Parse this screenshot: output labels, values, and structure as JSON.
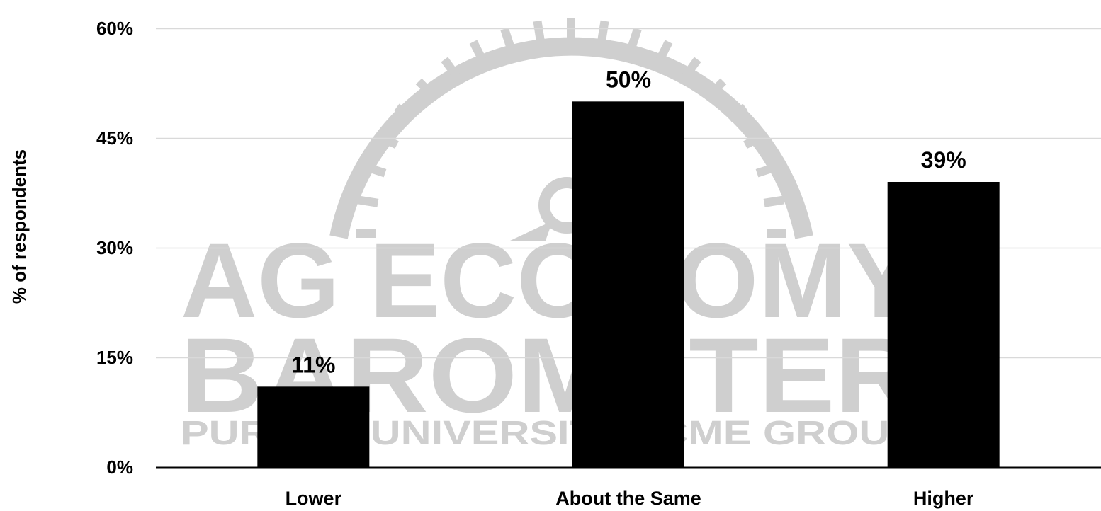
{
  "watermark": {
    "line1": "AG ECONOMY",
    "line2": "BAROMETER",
    "line3": "PURDUE UNIVERSITY | CME GROUP",
    "color": "#cfcfcf"
  },
  "chart_data": {
    "type": "bar",
    "categories": [
      "Lower",
      "About the Same",
      "Higher"
    ],
    "values": [
      11,
      50,
      39
    ],
    "data_labels": [
      "11%",
      "50%",
      "39%"
    ],
    "ylabel": "% of respondents",
    "xlabel": "",
    "ylim": [
      0,
      60
    ],
    "yticks": [
      0,
      15,
      30,
      45,
      60
    ],
    "ytick_labels": [
      "0%",
      "15%",
      "30%",
      "45%",
      "60%"
    ],
    "grid": true,
    "legend": "none",
    "bar_color": "#000000",
    "grid_color": "#d9d9d9"
  }
}
